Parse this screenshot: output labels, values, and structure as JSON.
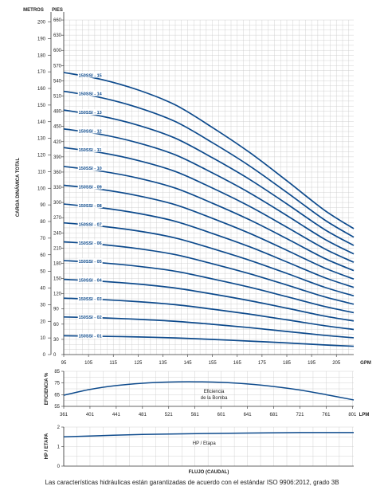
{
  "chart_data": [
    {
      "type": "line",
      "y_headers": [
        "METROS",
        "PIES"
      ],
      "ylabel": "CARGA DINÁMICA TOTAL",
      "x_unit": "GPM",
      "x_ticks": [
        95,
        105,
        115,
        125,
        135,
        145,
        155,
        165,
        175,
        185,
        195,
        205
      ],
      "xlim": [
        95,
        212
      ],
      "y_meters_ticks": [
        0,
        10,
        20,
        30,
        40,
        50,
        60,
        70,
        80,
        90,
        100,
        110,
        120,
        130,
        140,
        150,
        160,
        170,
        180,
        190,
        200
      ],
      "y_feet_ticks": [
        0,
        30,
        60,
        90,
        120,
        150,
        180,
        210,
        240,
        270,
        300,
        330,
        360,
        390,
        420,
        450,
        480,
        510,
        540,
        570,
        600,
        630,
        660
      ],
      "ylim_meters": [
        0,
        201.2
      ],
      "x": [
        95,
        110,
        125,
        140,
        155,
        170,
        185,
        200,
        212
      ],
      "series": [
        {
          "name": "150SSI - 01",
          "values": [
            11.3,
            11.0,
            10.6,
            10.0,
            9.1,
            8.1,
            7.0,
            5.8,
            5.0
          ]
        },
        {
          "name": "150SSI - 02",
          "values": [
            22.6,
            22.1,
            21.2,
            20.0,
            18.2,
            16.2,
            13.9,
            11.6,
            10.1
          ]
        },
        {
          "name": "150SSI - 03",
          "values": [
            33.9,
            33.1,
            31.8,
            30.0,
            27.3,
            24.3,
            20.9,
            17.4,
            15.1
          ]
        },
        {
          "name": "150SSI - 04",
          "values": [
            45.2,
            44.1,
            42.4,
            40.0,
            36.4,
            32.4,
            27.9,
            23.2,
            20.2
          ]
        },
        {
          "name": "150SSI - 05",
          "values": [
            56.5,
            55.2,
            53.1,
            50.1,
            45.5,
            40.5,
            34.8,
            29.0,
            25.2
          ]
        },
        {
          "name": "150SSI - 06",
          "values": [
            67.8,
            66.2,
            63.7,
            60.1,
            54.6,
            48.6,
            41.8,
            34.8,
            30.3
          ]
        },
        {
          "name": "150SSI - 07",
          "values": [
            79.2,
            77.2,
            74.3,
            70.1,
            63.7,
            56.7,
            48.8,
            40.6,
            35.3
          ]
        },
        {
          "name": "150SSI - 08",
          "values": [
            90.5,
            88.3,
            84.9,
            80.1,
            72.8,
            64.8,
            55.7,
            46.4,
            40.4
          ]
        },
        {
          "name": "150SSI - 09",
          "values": [
            101.8,
            99.3,
            95.5,
            90.1,
            81.9,
            72.9,
            62.7,
            52.2,
            45.4
          ]
        },
        {
          "name": "150SSI - 10",
          "values": [
            113.1,
            110.3,
            106.1,
            100.1,
            91.0,
            81.0,
            69.7,
            58.0,
            50.5
          ]
        },
        {
          "name": "150SSI - 11",
          "values": [
            124.4,
            121.4,
            116.7,
            110.1,
            100.1,
            89.1,
            76.6,
            63.8,
            55.5
          ]
        },
        {
          "name": "150SSI - 12",
          "values": [
            135.7,
            132.4,
            127.3,
            120.1,
            109.2,
            97.2,
            83.6,
            69.6,
            60.5
          ]
        },
        {
          "name": "150SSI - 13",
          "values": [
            147.0,
            143.4,
            137.9,
            130.1,
            118.3,
            105.3,
            90.6,
            75.4,
            65.6
          ]
        },
        {
          "name": "150SSI - 14",
          "values": [
            158.3,
            154.5,
            148.5,
            140.1,
            127.4,
            113.4,
            97.5,
            81.2,
            70.6
          ]
        },
        {
          "name": "150SSI - 15",
          "values": [
            169.6,
            165.5,
            159.1,
            150.1,
            136.5,
            121.5,
            104.5,
            87.0,
            75.7
          ]
        }
      ]
    },
    {
      "type": "line",
      "ylabel": "EFICIENCIA %",
      "x_unit": "LPM",
      "x_ticks": [
        361,
        401,
        441,
        481,
        521,
        561,
        601,
        641,
        681,
        721,
        761,
        801
      ],
      "xlim": [
        361,
        803
      ],
      "y_ticks": [
        55,
        65,
        75,
        85
      ],
      "ylim": [
        55,
        85
      ],
      "annotation": "Eficiencia\nde la Bomba",
      "x": [
        361,
        401,
        441,
        481,
        521,
        561,
        601,
        641,
        681,
        721,
        761,
        803
      ],
      "values": [
        64.5,
        69.5,
        72.8,
        74.8,
        75.8,
        76.0,
        75.5,
        74.2,
        72.0,
        69.0,
        65.0,
        60.5
      ]
    },
    {
      "type": "line",
      "ylabel": "HP / ETAPA",
      "y_ticks": [
        0,
        1,
        2
      ],
      "ylim": [
        0,
        2
      ],
      "annotation": "HP / Etapa",
      "x": [
        361,
        481,
        601,
        721,
        803
      ],
      "values": [
        1.5,
        1.62,
        1.68,
        1.72,
        1.72
      ]
    }
  ],
  "xlabel": "FLUJO (CAUDAL)",
  "footnote": "Las características hidráulicas están garantizadas de acuerdo con el estándar ISO 9906:2012, grado 3B",
  "colors": {
    "curve": "#0d4a8c",
    "grid": "#c8c8c8",
    "axis": "#333333"
  }
}
